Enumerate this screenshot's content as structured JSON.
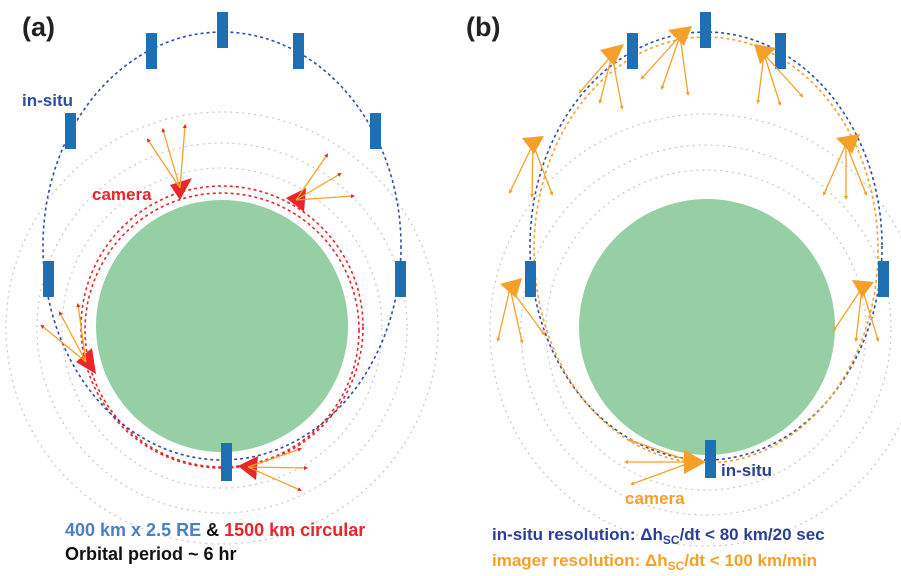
{
  "panel_a": {
    "label": "(a)",
    "insitu_label": "in-situ",
    "camera_label": "camera",
    "caption_orbit1": "400 km x 2.5 RE",
    "caption_amp": " & ",
    "caption_orbit2": "1500 km circular",
    "caption_period": "Orbital period ~ 6 hr"
  },
  "panel_b": {
    "label": "(b)",
    "insitu_label": "in-situ",
    "camera_label": "camera",
    "res_insitu_prefix": "in-situ resolution: ",
    "res_imager_prefix": "imager resolution: ",
    "res_symbol": "Δh",
    "res_subscript": "SC",
    "res_insitu_value": "/dt < 80 km/20 sec",
    "res_imager_value": "/dt < 100 km/min"
  },
  "colors": {
    "earth": "#96cfa4",
    "insitu_blue": "#2e4ea3",
    "spacecraft_blue": "#1f6fb4",
    "camera_red": "#e8262a",
    "imager_orange": "#f5a02a",
    "guide_gray": "#c8c8c8",
    "caption_blue": "#4a80c4",
    "caption_dark_blue": "#2b3f96",
    "caption_black": "#111111"
  }
}
